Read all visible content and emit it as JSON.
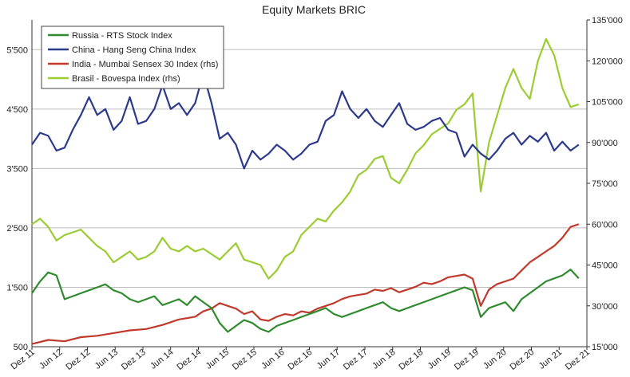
{
  "chart_data": {
    "type": "line",
    "title": "Equity Markets BRIC",
    "xlabel": "",
    "ylabel_left": "",
    "ylabel_right": "",
    "x_ticks": [
      "Dez 11",
      "Jun 12",
      "Dez 12",
      "Jun 13",
      "Dez 13",
      "Jun 14",
      "Dez 14",
      "Jun 15",
      "Dez 15",
      "Jun 16",
      "Dez 16",
      "Jun 17",
      "Dez 17",
      "Jun 18",
      "Dez 18",
      "Jun 19",
      "Dez 19",
      "Jun 20",
      "Dez 20",
      "Jun 21",
      "Dez 21"
    ],
    "y_left": {
      "ticks": [
        "500",
        "1'500",
        "2'500",
        "3'500",
        "4'500",
        "5'500"
      ],
      "range": [
        500,
        6000
      ]
    },
    "y_right": {
      "ticks": [
        "15'000",
        "30'000",
        "45'000",
        "60'000",
        "75'000",
        "90'000",
        "105'000",
        "120'000",
        "135'000"
      ],
      "range": [
        15000,
        135000
      ]
    },
    "grid": true,
    "legend_position": "top-left",
    "colors": {
      "russia": "#2e8b2e",
      "china": "#2b3a8c",
      "india": "#c0392b",
      "brasil": "#9acd32",
      "grid": "#bdbdbd"
    },
    "series": [
      {
        "name": "Russia - RTS Stock Index",
        "axis": "left",
        "points": [
          [
            0,
            1400
          ],
          [
            1,
            1600
          ],
          [
            2,
            1750
          ],
          [
            3,
            1700
          ],
          [
            4,
            1300
          ],
          [
            5,
            1350
          ],
          [
            6,
            1400
          ],
          [
            7,
            1450
          ],
          [
            8,
            1500
          ],
          [
            9,
            1550
          ],
          [
            10,
            1450
          ],
          [
            11,
            1400
          ],
          [
            12,
            1300
          ],
          [
            13,
            1250
          ],
          [
            14,
            1300
          ],
          [
            15,
            1350
          ],
          [
            16,
            1200
          ],
          [
            17,
            1250
          ],
          [
            18,
            1300
          ],
          [
            19,
            1200
          ],
          [
            20,
            1350
          ],
          [
            21,
            1250
          ],
          [
            22,
            1150
          ],
          [
            23,
            900
          ],
          [
            24,
            750
          ],
          [
            25,
            850
          ],
          [
            26,
            950
          ],
          [
            27,
            900
          ],
          [
            28,
            800
          ],
          [
            29,
            750
          ],
          [
            30,
            850
          ],
          [
            31,
            900
          ],
          [
            32,
            950
          ],
          [
            33,
            1000
          ],
          [
            34,
            1050
          ],
          [
            35,
            1100
          ],
          [
            36,
            1150
          ],
          [
            37,
            1050
          ],
          [
            38,
            1000
          ],
          [
            39,
            1050
          ],
          [
            40,
            1100
          ],
          [
            41,
            1150
          ],
          [
            42,
            1200
          ],
          [
            43,
            1250
          ],
          [
            44,
            1150
          ],
          [
            45,
            1100
          ],
          [
            46,
            1150
          ],
          [
            47,
            1200
          ],
          [
            48,
            1250
          ],
          [
            49,
            1300
          ],
          [
            50,
            1350
          ],
          [
            51,
            1400
          ],
          [
            52,
            1450
          ],
          [
            53,
            1500
          ],
          [
            54,
            1450
          ],
          [
            55,
            1000
          ],
          [
            56,
            1150
          ],
          [
            57,
            1200
          ],
          [
            58,
            1250
          ],
          [
            59,
            1100
          ],
          [
            60,
            1300
          ],
          [
            61,
            1400
          ],
          [
            62,
            1500
          ],
          [
            63,
            1600
          ],
          [
            64,
            1650
          ],
          [
            65,
            1700
          ],
          [
            66,
            1800
          ],
          [
            67,
            1650
          ]
        ]
      },
      {
        "name": "China - Hang Seng China Index",
        "axis": "left",
        "points": [
          [
            0,
            3900
          ],
          [
            1,
            4100
          ],
          [
            2,
            4050
          ],
          [
            3,
            3800
          ],
          [
            4,
            3850
          ],
          [
            5,
            4150
          ],
          [
            6,
            4400
          ],
          [
            7,
            4700
          ],
          [
            8,
            4400
          ],
          [
            9,
            4500
          ],
          [
            10,
            4150
          ],
          [
            11,
            4300
          ],
          [
            12,
            4700
          ],
          [
            13,
            4250
          ],
          [
            14,
            4300
          ],
          [
            15,
            4500
          ],
          [
            16,
            4900
          ],
          [
            17,
            4500
          ],
          [
            18,
            4600
          ],
          [
            19,
            4400
          ],
          [
            20,
            4600
          ],
          [
            21,
            5100
          ],
          [
            22,
            4600
          ],
          [
            23,
            4000
          ],
          [
            24,
            4100
          ],
          [
            25,
            3900
          ],
          [
            26,
            3500
          ],
          [
            27,
            3800
          ],
          [
            28,
            3650
          ],
          [
            29,
            3750
          ],
          [
            30,
            3900
          ],
          [
            31,
            3800
          ],
          [
            32,
            3650
          ],
          [
            33,
            3750
          ],
          [
            34,
            3900
          ],
          [
            35,
            3950
          ],
          [
            36,
            4300
          ],
          [
            37,
            4400
          ],
          [
            38,
            4800
          ],
          [
            39,
            4500
          ],
          [
            40,
            4350
          ],
          [
            41,
            4500
          ],
          [
            42,
            4300
          ],
          [
            43,
            4200
          ],
          [
            44,
            4400
          ],
          [
            45,
            4600
          ],
          [
            46,
            4250
          ],
          [
            47,
            4150
          ],
          [
            48,
            4200
          ],
          [
            49,
            4300
          ],
          [
            50,
            4350
          ],
          [
            51,
            4150
          ],
          [
            52,
            4100
          ],
          [
            53,
            3700
          ],
          [
            54,
            3900
          ],
          [
            55,
            3750
          ],
          [
            56,
            3650
          ],
          [
            57,
            3800
          ],
          [
            58,
            4000
          ],
          [
            59,
            4100
          ],
          [
            60,
            3900
          ],
          [
            61,
            4050
          ],
          [
            62,
            3950
          ],
          [
            63,
            4100
          ],
          [
            64,
            3800
          ],
          [
            65,
            3950
          ],
          [
            66,
            3800
          ],
          [
            67,
            3900
          ]
        ]
      },
      {
        "name": "India - Mumbai Sensex 30 Index (rhs)",
        "axis": "right",
        "points": [
          [
            0,
            16000
          ],
          [
            2,
            17500
          ],
          [
            4,
            17000
          ],
          [
            6,
            18500
          ],
          [
            8,
            19000
          ],
          [
            10,
            20000
          ],
          [
            12,
            21000
          ],
          [
            14,
            21500
          ],
          [
            16,
            23000
          ],
          [
            18,
            25000
          ],
          [
            20,
            26000
          ],
          [
            21,
            28000
          ],
          [
            22,
            29000
          ],
          [
            23,
            31000
          ],
          [
            24,
            30000
          ],
          [
            25,
            29000
          ],
          [
            26,
            27000
          ],
          [
            27,
            28000
          ],
          [
            28,
            25000
          ],
          [
            29,
            24500
          ],
          [
            30,
            26000
          ],
          [
            31,
            27000
          ],
          [
            32,
            26500
          ],
          [
            33,
            28000
          ],
          [
            34,
            27500
          ],
          [
            35,
            29000
          ],
          [
            36,
            30000
          ],
          [
            37,
            31000
          ],
          [
            38,
            32500
          ],
          [
            39,
            33500
          ],
          [
            40,
            34000
          ],
          [
            41,
            34500
          ],
          [
            42,
            36000
          ],
          [
            43,
            35500
          ],
          [
            44,
            36500
          ],
          [
            45,
            35000
          ],
          [
            46,
            36000
          ],
          [
            47,
            37000
          ],
          [
            48,
            38500
          ],
          [
            49,
            38000
          ],
          [
            50,
            39000
          ],
          [
            51,
            40500
          ],
          [
            52,
            41000
          ],
          [
            53,
            41500
          ],
          [
            54,
            40000
          ],
          [
            55,
            30000
          ],
          [
            56,
            36000
          ],
          [
            57,
            38000
          ],
          [
            58,
            39000
          ],
          [
            59,
            40000
          ],
          [
            60,
            43000
          ],
          [
            61,
            46000
          ],
          [
            62,
            48000
          ],
          [
            63,
            50000
          ],
          [
            64,
            52000
          ],
          [
            65,
            55000
          ],
          [
            66,
            59000
          ],
          [
            67,
            60000
          ]
        ]
      },
      {
        "name": "Brasil - Bovespa Index (rhs)",
        "axis": "right",
        "points": [
          [
            0,
            60000
          ],
          [
            1,
            62000
          ],
          [
            2,
            59000
          ],
          [
            3,
            54000
          ],
          [
            4,
            56000
          ],
          [
            5,
            57000
          ],
          [
            6,
            58000
          ],
          [
            7,
            55000
          ],
          [
            8,
            52000
          ],
          [
            9,
            50000
          ],
          [
            10,
            46000
          ],
          [
            11,
            48000
          ],
          [
            12,
            50000
          ],
          [
            13,
            47000
          ],
          [
            14,
            48000
          ],
          [
            15,
            50000
          ],
          [
            16,
            55000
          ],
          [
            17,
            51000
          ],
          [
            18,
            50000
          ],
          [
            19,
            52000
          ],
          [
            20,
            50000
          ],
          [
            21,
            51000
          ],
          [
            22,
            49000
          ],
          [
            23,
            47000
          ],
          [
            24,
            50000
          ],
          [
            25,
            53000
          ],
          [
            26,
            47000
          ],
          [
            27,
            46000
          ],
          [
            28,
            45000
          ],
          [
            29,
            40000
          ],
          [
            30,
            43000
          ],
          [
            31,
            48000
          ],
          [
            32,
            50000
          ],
          [
            33,
            56000
          ],
          [
            34,
            59000
          ],
          [
            35,
            62000
          ],
          [
            36,
            61000
          ],
          [
            37,
            65000
          ],
          [
            38,
            68000
          ],
          [
            39,
            72000
          ],
          [
            40,
            78000
          ],
          [
            41,
            80000
          ],
          [
            42,
            84000
          ],
          [
            43,
            85000
          ],
          [
            44,
            77000
          ],
          [
            45,
            75000
          ],
          [
            46,
            80000
          ],
          [
            47,
            86000
          ],
          [
            48,
            89000
          ],
          [
            49,
            93000
          ],
          [
            50,
            95000
          ],
          [
            51,
            97000
          ],
          [
            52,
            102000
          ],
          [
            53,
            104000
          ],
          [
            54,
            108000
          ],
          [
            55,
            72000
          ],
          [
            56,
            90000
          ],
          [
            57,
            100000
          ],
          [
            58,
            110000
          ],
          [
            59,
            117000
          ],
          [
            60,
            110000
          ],
          [
            61,
            106000
          ],
          [
            62,
            120000
          ],
          [
            63,
            128000
          ],
          [
            64,
            122000
          ],
          [
            65,
            110000
          ],
          [
            66,
            103000
          ],
          [
            67,
            104000
          ]
        ]
      }
    ]
  }
}
